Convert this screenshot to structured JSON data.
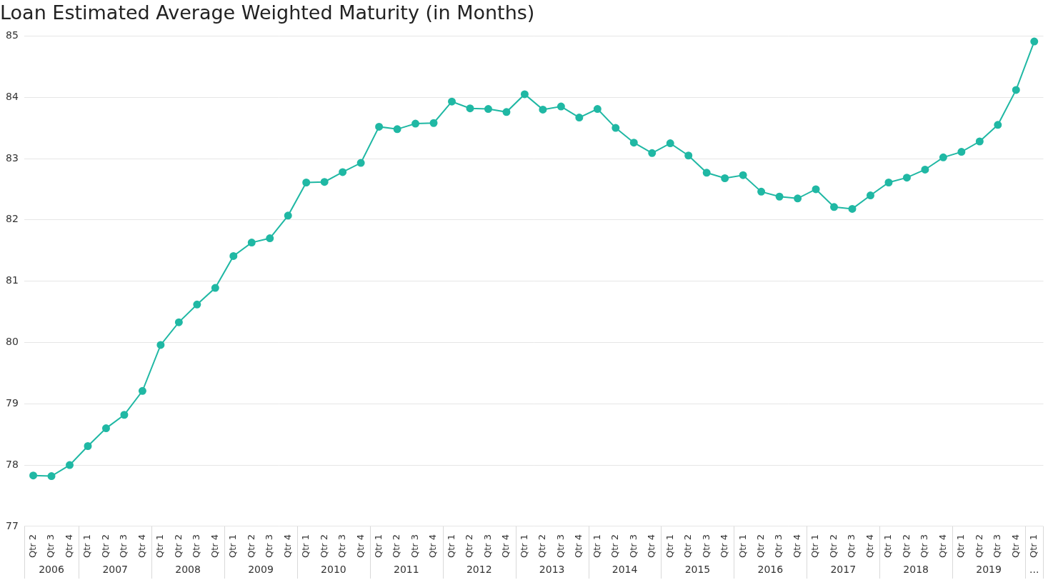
{
  "chart_data": {
    "type": "line",
    "title": "Loan Estimated Average Weighted Maturity (in Months)",
    "categories": [
      "Qtr 2",
      "Qtr 3",
      "Qtr 4",
      "Qtr 1",
      "Qtr 2",
      "Qtr 3",
      "Qtr 4",
      "Qtr 1",
      "Qtr 2",
      "Qtr 3",
      "Qtr 4",
      "Qtr 1",
      "Qtr 2",
      "Qtr 3",
      "Qtr 4",
      "Qtr 1",
      "Qtr 2",
      "Qtr 3",
      "Qtr 4",
      "Qtr 1",
      "Qtr 2",
      "Qtr 3",
      "Qtr 4",
      "Qtr 1",
      "Qtr 2",
      "Qtr 3",
      "Qtr 4",
      "Qtr 1",
      "Qtr 2",
      "Qtr 3",
      "Qtr 4",
      "Qtr 1",
      "Qtr 2",
      "Qtr 3",
      "Qtr 4",
      "Qtr 1",
      "Qtr 2",
      "Qtr 3",
      "Qtr 4",
      "Qtr 1",
      "Qtr 2",
      "Qtr 3",
      "Qtr 4",
      "Qtr 1",
      "Qtr 2",
      "Qtr 3",
      "Qtr 4",
      "Qtr 1",
      "Qtr 2",
      "Qtr 3",
      "Qtr 4",
      "Qtr 1",
      "Qtr 2",
      "Qtr 3",
      "Qtr 4",
      "Qtr 1"
    ],
    "years": [
      "2006",
      "2006",
      "2006",
      "2007",
      "2007",
      "2007",
      "2007",
      "2008",
      "2008",
      "2008",
      "2008",
      "2009",
      "2009",
      "2009",
      "2009",
      "2010",
      "2010",
      "2010",
      "2010",
      "2011",
      "2011",
      "2011",
      "2011",
      "2012",
      "2012",
      "2012",
      "2012",
      "2013",
      "2013",
      "2013",
      "2013",
      "2014",
      "2014",
      "2014",
      "2014",
      "2015",
      "2015",
      "2015",
      "2015",
      "2016",
      "2016",
      "2016",
      "2016",
      "2017",
      "2017",
      "2017",
      "2017",
      "2018",
      "2018",
      "2018",
      "2018",
      "2019",
      "2019",
      "2019",
      "2019",
      "..."
    ],
    "values": [
      77.83,
      77.82,
      78.0,
      78.31,
      78.6,
      78.82,
      79.21,
      79.96,
      80.33,
      80.62,
      80.89,
      81.41,
      81.63,
      81.7,
      82.07,
      82.61,
      82.62,
      82.78,
      82.93,
      83.52,
      83.48,
      83.57,
      83.58,
      83.93,
      83.82,
      83.81,
      83.76,
      84.05,
      83.8,
      83.85,
      83.67,
      83.81,
      83.5,
      83.26,
      83.09,
      83.25,
      83.05,
      82.77,
      82.68,
      82.73,
      82.46,
      82.38,
      82.35,
      82.5,
      82.21,
      82.18,
      82.4,
      82.61,
      82.69,
      82.82,
      83.02,
      83.11,
      83.28,
      83.55,
      84.12,
      84.91
    ],
    "color": "#20b8a4",
    "marker": "circle",
    "ylim": [
      77,
      85
    ],
    "yticks": [
      77,
      78,
      79,
      80,
      81,
      82,
      83,
      84,
      85
    ],
    "grid": true
  }
}
